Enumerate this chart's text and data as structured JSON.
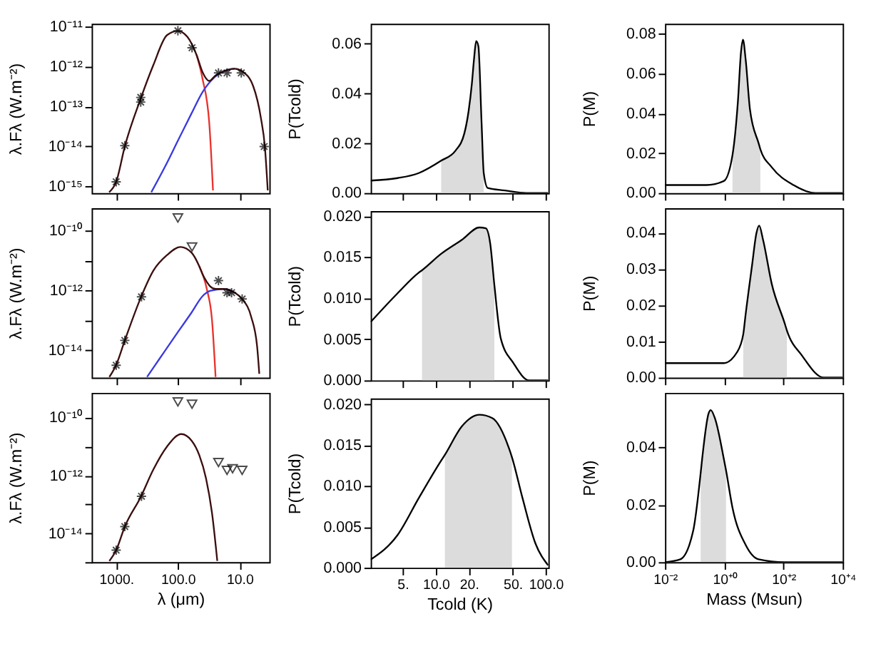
{
  "chart_data": [
    {
      "type": "line",
      "log": "xy",
      "ylabel": "λ.Fλ (W.m⁻²)",
      "tick_labels": "y",
      "xlim": [
        2500,
        3.3
      ],
      "xticks": [
        {
          "value": 1000,
          "label": null
        },
        {
          "value": 100,
          "label": null
        },
        {
          "value": 10,
          "label": null
        }
      ],
      "ylim": [
        6.8e-16,
        1.2e-11
      ],
      "yticks": [
        {
          "value": 1e-15,
          "label": "10⁻¹⁵"
        },
        {
          "value": 1e-14,
          "label": "10⁻¹⁴"
        },
        {
          "value": 1e-13,
          "label": "10⁻¹³"
        },
        {
          "value": 1e-12,
          "label": "10⁻¹²"
        },
        {
          "value": 1e-11,
          "label": "10⁻¹¹"
        }
      ],
      "series": [
        {
          "color": "#e8322d",
          "x": [
            50,
            40,
            31,
            27
          ],
          "values": [
            2e-12,
            5.1e-13,
            3.8e-14,
            7.9e-16
          ]
        },
        {
          "color": "#3a3ae0",
          "x": [
            270,
            150,
            100,
            60,
            40,
            25,
            15,
            12
          ],
          "values": [
            7.1e-16,
            3.9e-15,
            1.4e-14,
            6.8e-14,
            2.3e-13,
            5.6e-13,
            8.5e-13,
            8.9e-13
          ]
        },
        {
          "color": "#3b0f0f",
          "x": [
            1300,
            1000,
            725,
            400,
            250,
            150,
            100,
            70,
            50,
            40,
            31,
            25,
            15,
            12,
            9,
            6,
            4.5,
            3.9,
            3.5
          ],
          "values": [
            7.1e-16,
            1.3e-15,
            1e-14,
            1.6e-13,
            1.1e-12,
            6.2e-12,
            7.9e-12,
            5.6e-12,
            2e-12,
            7.4e-13,
            4.4e-13,
            5.9e-13,
            8.5e-13,
            8.9e-13,
            7.6e-13,
            3.2e-13,
            5e-14,
            1e-14,
            7.9e-16
          ]
        },
        {
          "type": "scatter",
          "marker": "cross",
          "color": "#000000",
          "x": [
            1000,
            725,
            400,
            400,
            100,
            59,
            22,
            16,
            9.4,
            4
          ],
          "values": [
            1.3e-15,
            1.05e-14,
            1.7e-13,
            1.3e-13,
            8e-12,
            3e-12,
            7e-13,
            7e-13,
            7e-13,
            1e-14
          ]
        }
      ]
    },
    {
      "type": "line",
      "log": "x",
      "ylabel": "P(Tcold)",
      "tick_labels": "y",
      "xlim": [
        2.56,
        105.6
      ],
      "xticks": [
        {
          "value": 5,
          "label": null
        },
        {
          "value": 10,
          "label": null
        },
        {
          "value": 20,
          "label": null
        },
        {
          "value": 50,
          "label": null
        },
        {
          "value": 100,
          "label": null
        }
      ],
      "ylim": [
        0,
        0.068
      ],
      "yticks": [
        {
          "value": 0,
          "label": "0.00"
        },
        {
          "value": 0.02,
          "label": "0.02"
        },
        {
          "value": 0.04,
          "label": "0.04"
        },
        {
          "value": 0.06,
          "label": "0.06"
        }
      ],
      "series": [
        {
          "type": "area",
          "color": "#dcdcdc",
          "x": [
            11.2,
            15.1,
            18.2,
            19.9,
            21.3,
            22.3,
            23.3,
            24.4,
            26.1,
            27.3
          ],
          "values": [
            0.013,
            0.017,
            0.024,
            0.033,
            0.044,
            0.054,
            0.061,
            0.059,
            0.028,
            0.008
          ]
        },
        {
          "color": "#000000",
          "x": [
            2.56,
            4.5,
            7.0,
            11.2,
            15.1,
            18.2,
            19.9,
            21.3,
            22.3,
            23.3,
            24.4,
            26.1,
            27.3,
            29.7,
            42.6,
            66.8,
            105
          ],
          "values": [
            0.005,
            0.006,
            0.008,
            0.013,
            0.017,
            0.024,
            0.033,
            0.044,
            0.054,
            0.061,
            0.059,
            0.028,
            0.008,
            0.002,
            0.001,
            0.0,
            0.0
          ]
        }
      ]
    },
    {
      "type": "line",
      "log": "x",
      "ylabel": "P(M)",
      "tick_labels": "y",
      "xlim": [
        0.01,
        10000
      ],
      "xticks": [
        {
          "value": 0.01,
          "label": null
        },
        {
          "value": 1,
          "label": null
        },
        {
          "value": 100,
          "label": null
        },
        {
          "value": 10000,
          "label": null
        }
      ],
      "ylim": [
        0,
        0.085
      ],
      "yticks": [
        {
          "value": 0,
          "label": "0.00"
        },
        {
          "value": 0.02,
          "label": "0.02"
        },
        {
          "value": 0.04,
          "label": "0.04"
        },
        {
          "value": 0.06,
          "label": "0.06"
        },
        {
          "value": 0.08,
          "label": "0.08"
        }
      ],
      "series": [
        {
          "type": "area",
          "color": "#dcdcdc",
          "x": [
            1.9,
            2.9,
            3.7,
            4.3,
            5.3,
            7.4,
            14.5,
            16.6
          ],
          "values": [
            0.019,
            0.046,
            0.071,
            0.077,
            0.067,
            0.042,
            0.025,
            0.022
          ]
        },
        {
          "color": "#000000",
          "x": [
            0.01,
            0.25,
            0.97,
            1.9,
            2.9,
            3.7,
            4.3,
            5.3,
            7.4,
            14.5,
            16.6,
            40,
            219,
            1180,
            10000
          ],
          "values": [
            0.004,
            0.004,
            0.006,
            0.019,
            0.046,
            0.071,
            0.077,
            0.067,
            0.042,
            0.025,
            0.022,
            0.013,
            0.004,
            0.0,
            0.0
          ]
        }
      ]
    },
    {
      "type": "line",
      "log": "xy",
      "ylabel": "λ.Fλ (W.m⁻²)",
      "tick_labels": "y",
      "xlim": [
        2500,
        3.3
      ],
      "xticks": [
        {
          "value": 1000,
          "label": null
        },
        {
          "value": 100,
          "label": null
        },
        {
          "value": 10,
          "label": null
        }
      ],
      "ylim": [
        1.2e-15,
        5.5e-10
      ],
      "yticks": [
        {
          "value": 1e-14,
          "label": "10⁻¹⁴"
        },
        {
          "value": 1e-13,
          "label": null
        },
        {
          "value": 1e-12,
          "label": "10⁻¹²"
        },
        {
          "value": 1e-11,
          "label": null
        },
        {
          "value": 1e-10,
          "label": "10⁻¹⁰"
        }
      ],
      "series": [
        {
          "color": "#e8322d",
          "x": [
            45,
            34,
            28,
            24.5
          ],
          "values": [
            6.3e-12,
            1.1e-12,
            1e-13,
            1.26e-15
          ]
        },
        {
          "color": "#3a3ae0",
          "x": [
            316,
            200,
            100,
            60,
            40,
            30,
            18.4,
            12
          ],
          "values": [
            1.26e-15,
            5e-15,
            4e-14,
            1.8e-13,
            6.3e-13,
            9.5e-13,
            1.1e-12,
            8.3e-13
          ]
        },
        {
          "color": "#3b0f0f",
          "x": [
            1290,
            1000,
            725,
            400,
            250,
            150,
            91,
            60,
            45,
            40,
            34,
            30,
            24.5,
            18.4,
            12,
            9.1,
            6.5,
            5.2,
            4.8
          ],
          "values": [
            1.26e-15,
            3.2e-15,
            2.1e-14,
            5.6e-13,
            4.5e-12,
            1.5e-11,
            2.8e-11,
            1.8e-11,
            6.3e-12,
            3.5e-12,
            1.9e-12,
            1.35e-12,
            1.1e-12,
            1.1e-12,
            8.3e-13,
            5.1e-13,
            1.3e-13,
            1.3e-14,
            1.6e-15
          ]
        },
        {
          "type": "scatter",
          "marker": "cross",
          "color": "#000000",
          "x": [
            1000,
            725,
            389,
            22,
            16,
            13.5,
            9.1
          ],
          "values": [
            3.1e-15,
            2.1e-14,
            6e-13,
            2.1e-12,
            8.3e-13,
            8.3e-13,
            5.1e-13
          ]
        },
        {
          "type": "scatter",
          "marker": "triangle",
          "color": "#000000",
          "x": [
            100,
            59
          ],
          "values": [
            2.6e-10,
            2.8e-11
          ]
        }
      ]
    },
    {
      "type": "line",
      "log": "x",
      "ylabel": "P(Tcold)",
      "tick_labels": "y",
      "xlim": [
        2.56,
        105.6
      ],
      "xticks": [
        {
          "value": 5,
          "label": null
        },
        {
          "value": 10,
          "label": null
        },
        {
          "value": 20,
          "label": null
        },
        {
          "value": 50,
          "label": null
        },
        {
          "value": 100,
          "label": null
        }
      ],
      "ylim": [
        0,
        0.0206
      ],
      "yticks": [
        {
          "value": 0,
          "label": "0.000"
        },
        {
          "value": 0.005,
          "label": "0.005"
        },
        {
          "value": 0.01,
          "label": "0.010"
        },
        {
          "value": 0.015,
          "label": "0.015"
        },
        {
          "value": 0.02,
          "label": "0.020"
        }
      ],
      "series": [
        {
          "type": "area",
          "color": "#dcdcdc",
          "x": [
            7.5,
            11.2,
            17.3,
            24.9,
            28.5,
            31.3,
            34.1
          ],
          "values": [
            0.0134,
            0.0154,
            0.0171,
            0.0186,
            0.0185,
            0.0166,
            0.0116
          ]
        },
        {
          "color": "#000000",
          "x": [
            2.56,
            4.5,
            7.0,
            7.5,
            11.2,
            17.3,
            24.9,
            28.5,
            31.3,
            34.1,
            39.0,
            50.8,
            70.6,
            105
          ],
          "values": [
            0.0071,
            0.0106,
            0.0131,
            0.0134,
            0.0154,
            0.0171,
            0.0186,
            0.0185,
            0.0166,
            0.0116,
            0.0051,
            0.0021,
            0.0,
            0.0
          ]
        }
      ]
    },
    {
      "type": "line",
      "log": "x",
      "ylabel": "P(M)",
      "tick_labels": "y",
      "xlim": [
        0.01,
        10000
      ],
      "xticks": [
        {
          "value": 0.01,
          "label": null
        },
        {
          "value": 1,
          "label": null
        },
        {
          "value": 100,
          "label": null
        },
        {
          "value": 10000,
          "label": null
        }
      ],
      "ylim": [
        0,
        0.0468
      ],
      "yticks": [
        {
          "value": 0,
          "label": "0.00"
        },
        {
          "value": 0.01,
          "label": "0.01"
        },
        {
          "value": 0.02,
          "label": "0.02"
        },
        {
          "value": 0.03,
          "label": "0.03"
        },
        {
          "value": 0.04,
          "label": "0.04"
        }
      ],
      "series": [
        {
          "type": "area",
          "color": "#dcdcdc",
          "x": [
            4.4,
            5.2,
            8.7,
            12.3,
            15.1,
            20.6,
            40,
            110,
            131
          ],
          "values": [
            0.012,
            0.017,
            0.031,
            0.04,
            0.042,
            0.038,
            0.026,
            0.015,
            0.013
          ]
        },
        {
          "color": "#000000",
          "x": [
            0.01,
            0.97,
            2.7,
            4.4,
            5.2,
            8.7,
            12.3,
            15.1,
            20.6,
            40,
            110,
            131,
            430,
            2300,
            10000
          ],
          "values": [
            0.004,
            0.004,
            0.007,
            0.012,
            0.017,
            0.031,
            0.04,
            0.042,
            0.038,
            0.026,
            0.015,
            0.013,
            0.006,
            0.0,
            0.0
          ]
        }
      ]
    },
    {
      "type": "line",
      "log": "xy",
      "xlabel": "λ (μm)",
      "ylabel": "λ.Fλ (W.m⁻²)",
      "xlim": [
        2500,
        3.3
      ],
      "xticks": [
        {
          "value": 1000,
          "label": "1000."
        },
        {
          "value": 100,
          "label": "100.0"
        },
        {
          "value": 10,
          "label": "10.0"
        }
      ],
      "ylim": [
        1e-15,
        7.2e-10
      ],
      "yticks": [
        {
          "value": 1e-15,
          "label": null
        },
        {
          "value": 1e-14,
          "label": "10⁻¹⁴"
        },
        {
          "value": 1e-13,
          "label": null
        },
        {
          "value": 1e-12,
          "label": "10⁻¹²"
        },
        {
          "value": 1e-11,
          "label": null
        },
        {
          "value": 1e-10,
          "label": "10⁻¹⁰"
        }
      ],
      "series": [
        {
          "color": "#3b0f0f",
          "x": [
            1290,
            1000,
            725,
            400,
            250,
            150,
            88,
            60,
            45,
            35,
            28,
            23
          ],
          "values": [
            1.1e-15,
            2.6e-15,
            1.7e-14,
            1.8e-13,
            1.6e-12,
            1e-11,
            2.7e-11,
            1.6e-11,
            5e-12,
            7.9e-13,
            5e-14,
            1.1e-15
          ]
        },
        {
          "type": "scatter",
          "marker": "cross",
          "color": "#000000",
          "x": [
            1000,
            725,
            389
          ],
          "values": [
            2.6e-15,
            1.7e-14,
            1.9e-13
          ]
        },
        {
          "type": "scatter",
          "marker": "triangle",
          "color": "#000000",
          "x": [
            100,
            59,
            22,
            16,
            13,
            9.1
          ],
          "values": [
            3.5e-10,
            2.9e-10,
            2.8e-12,
            1.5e-12,
            1.7e-12,
            1.5e-12
          ]
        }
      ]
    },
    {
      "type": "line",
      "log": "x",
      "xlabel": "Tcold (K)",
      "ylabel": "P(Tcold)",
      "xlim": [
        2.56,
        105.6
      ],
      "xticks": [
        {
          "value": 5,
          "label": "5."
        },
        {
          "value": 10,
          "label": "10.0"
        },
        {
          "value": 20,
          "label": "20."
        },
        {
          "value": 50,
          "label": "50."
        },
        {
          "value": 100,
          "label": "100.0"
        }
      ],
      "ylim": [
        0,
        0.0207
      ],
      "yticks": [
        {
          "value": 0,
          "label": "0.000"
        },
        {
          "value": 0.005,
          "label": "0.005"
        },
        {
          "value": 0.01,
          "label": "0.010"
        },
        {
          "value": 0.015,
          "label": "0.015"
        },
        {
          "value": 0.02,
          "label": "0.020"
        }
      ],
      "series": [
        {
          "type": "area",
          "color": "#dcdcdc",
          "x": [
            12.1,
            17.3,
            24.9,
            32.6,
            46.3,
            49.3
          ],
          "values": [
            0.0138,
            0.0173,
            0.0187,
            0.0183,
            0.0146,
            0.0135
          ]
        },
        {
          "color": "#000000",
          "x": [
            2.56,
            4.5,
            7.0,
            11.2,
            12.1,
            17.3,
            24.9,
            32.6,
            46.3,
            49.3,
            61.5,
            80.4,
            105
          ],
          "values": [
            0.001,
            0.004,
            0.0085,
            0.0131,
            0.0138,
            0.0173,
            0.0187,
            0.0183,
            0.0146,
            0.0135,
            0.0085,
            0.003,
            0.0003
          ]
        }
      ]
    },
    {
      "type": "line",
      "log": "x",
      "xlabel": "Mass (Msun)",
      "ylabel": "P(M)",
      "xlim": [
        0.01,
        10000
      ],
      "xticks": [
        {
          "value": 0.01,
          "label": "10⁻²"
        },
        {
          "value": 1,
          "label": "10⁺⁰"
        },
        {
          "value": 100,
          "label": "10⁺²"
        },
        {
          "value": 10000,
          "label": "10⁺⁴"
        }
      ],
      "ylim": [
        0,
        0.059
      ],
      "yticks": [
        {
          "value": 0,
          "label": "0.00"
        },
        {
          "value": 0.02,
          "label": "0.02"
        },
        {
          "value": 0.04,
          "label": "0.04"
        }
      ],
      "series": [
        {
          "type": "area",
          "color": "#dcdcdc",
          "x": [
            0.16,
            0.18,
            0.3,
            0.35,
            0.49,
            0.97,
            1.15
          ],
          "values": [
            0.031,
            0.036,
            0.052,
            0.053,
            0.05,
            0.036,
            0.032
          ]
        },
        {
          "color": "#000000",
          "x": [
            0.01,
            0.033,
            0.09,
            0.16,
            0.18,
            0.3,
            0.35,
            0.49,
            0.97,
            1.15,
            1.9,
            5.3,
            14.5,
            110,
            10000
          ],
          "values": [
            0.0,
            0.001,
            0.011,
            0.031,
            0.036,
            0.052,
            0.053,
            0.05,
            0.036,
            0.032,
            0.019,
            0.006,
            0.001,
            0.0,
            0.0
          ]
        }
      ]
    }
  ]
}
